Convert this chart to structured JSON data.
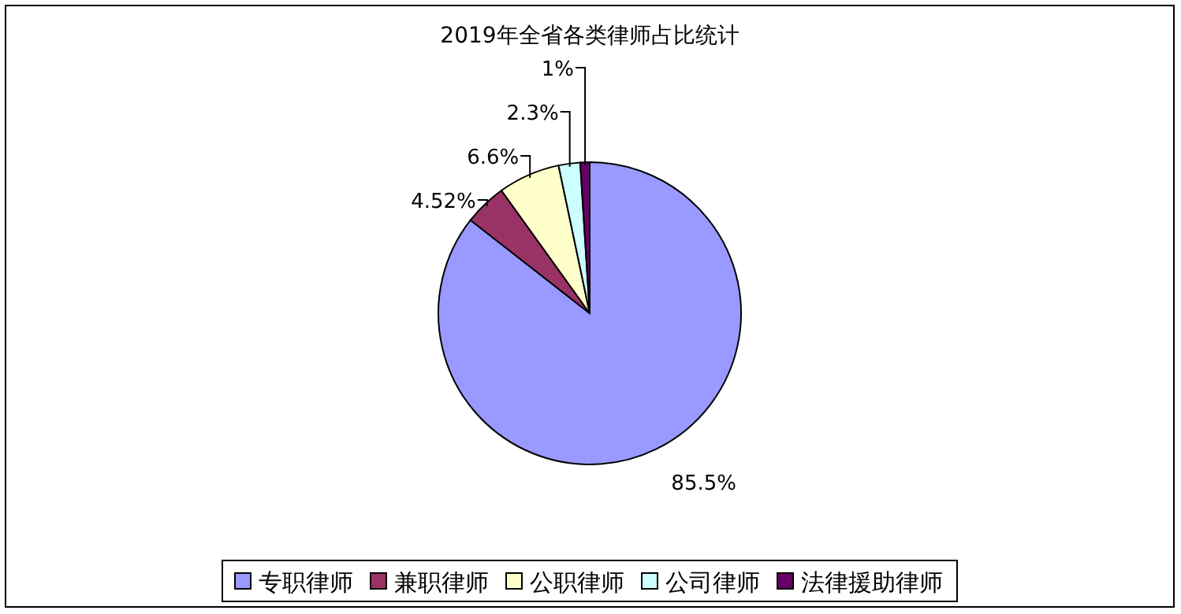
{
  "chart_data": {
    "type": "pie",
    "title": "2019年全省各类律师占比统计",
    "categories": [
      "专职律师",
      "兼职律师",
      "公职律师",
      "公司律师",
      "法律援助律师"
    ],
    "values": [
      85.5,
      4.52,
      6.6,
      2.3,
      1
    ],
    "value_labels": [
      "85.5%",
      "4.52%",
      "6.6%",
      "2.3%",
      "1%"
    ],
    "colors": [
      "#9999ff",
      "#993366",
      "#ffffcc",
      "#ccffff",
      "#660066"
    ],
    "legend": "bottom"
  }
}
